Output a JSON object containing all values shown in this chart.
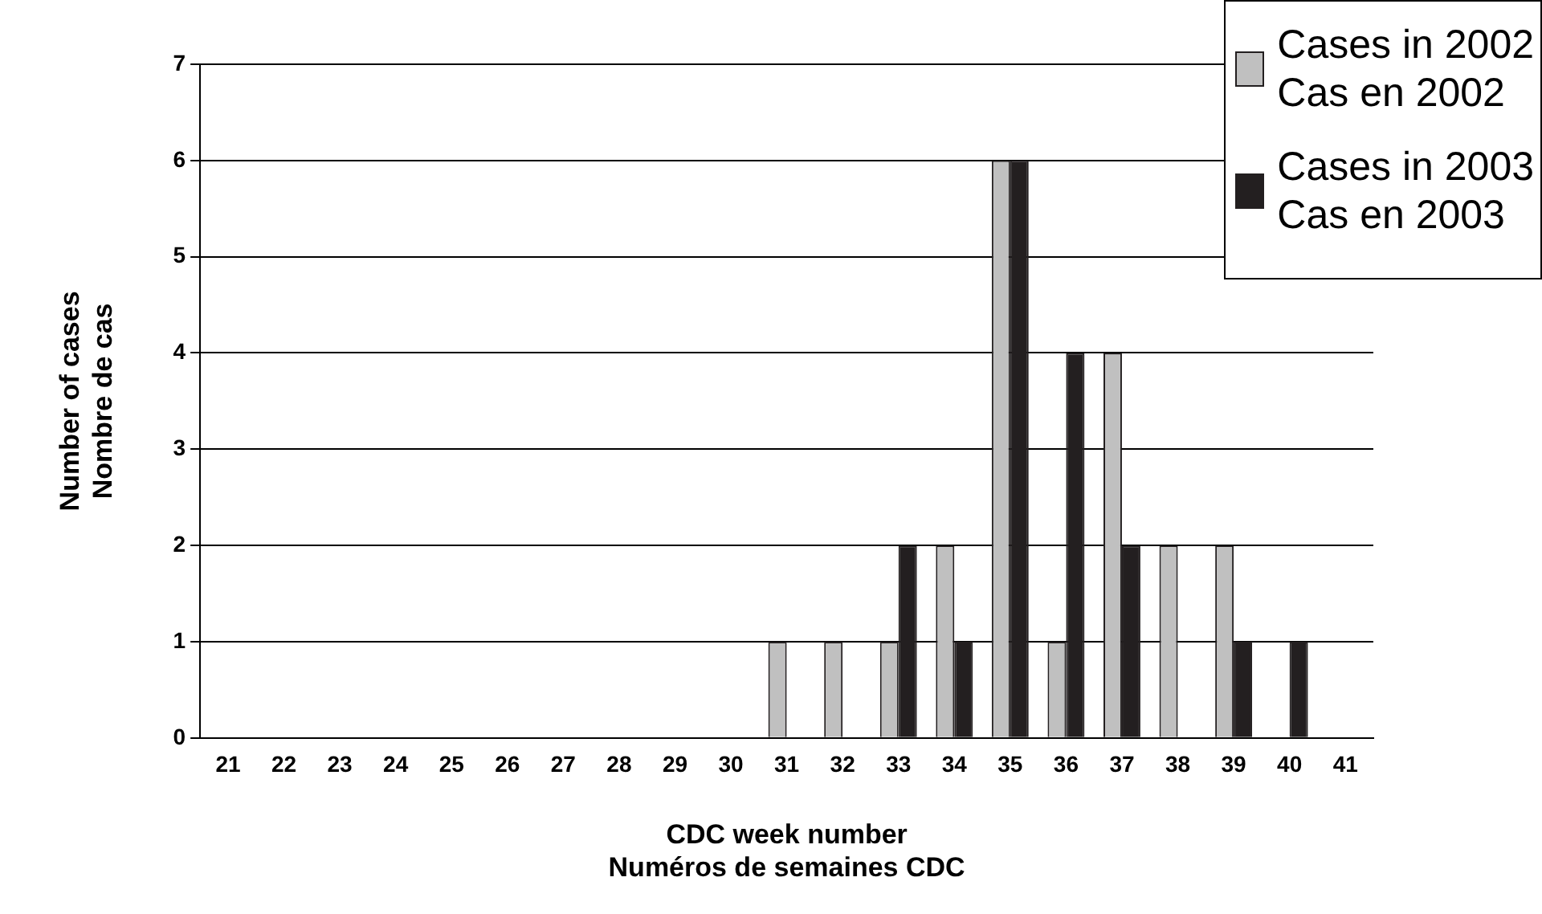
{
  "chart_data": {
    "type": "bar",
    "categories": [
      "21",
      "22",
      "23",
      "24",
      "25",
      "26",
      "27",
      "28",
      "29",
      "30",
      "31",
      "32",
      "33",
      "34",
      "35",
      "36",
      "37",
      "38",
      "39",
      "40",
      "41"
    ],
    "series": [
      {
        "name": "Cases in 2002\nCas en 2002",
        "color": "#c0c0c0",
        "values": [
          0,
          0,
          0,
          0,
          0,
          0,
          0,
          0,
          0,
          0,
          1,
          1,
          1,
          2,
          6,
          1,
          4,
          2,
          2,
          0,
          0
        ]
      },
      {
        "name": "Cases in 2003\nCas en 2003",
        "color": "#231f20",
        "values": [
          0,
          0,
          0,
          0,
          0,
          0,
          0,
          0,
          0,
          0,
          0,
          0,
          2,
          1,
          6,
          4,
          2,
          0,
          1,
          1,
          0
        ]
      }
    ],
    "xlabel": "CDC week number\nNuméros de semaines CDC",
    "ylabel": "Number of cases\nNombre de cas",
    "ylim": [
      0,
      7
    ],
    "yticks": [
      0,
      1,
      2,
      3,
      4,
      5,
      6,
      7
    ],
    "grid": "y",
    "legend": "top right"
  }
}
